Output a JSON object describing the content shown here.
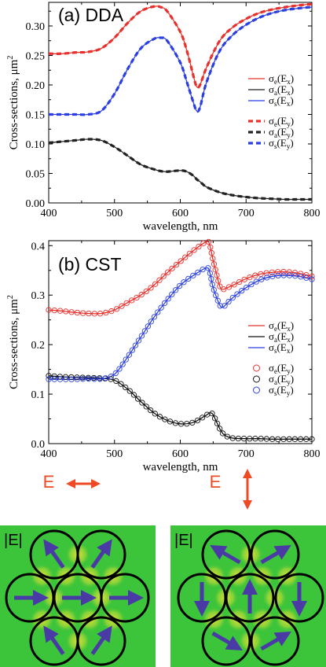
{
  "chart_data": [
    {
      "type": "line",
      "panel_label": "(a) DDA",
      "xlabel": "wavelength, nm",
      "ylabel": "Cross-sections, μm",
      "ylabel_sup": "2",
      "xlim": [
        400,
        800
      ],
      "ylim": [
        0,
        0.34
      ],
      "xticks": [
        400,
        500,
        600,
        700,
        800
      ],
      "yticks": [
        0.0,
        0.05,
        0.1,
        0.15,
        0.2,
        0.25,
        0.3
      ],
      "ytick_labels": [
        "0.00",
        "0.05",
        "0.10",
        "0.15",
        "0.20",
        "0.25",
        "0.30"
      ],
      "x": [
        400,
        420,
        440,
        460,
        480,
        500,
        520,
        540,
        560,
        570,
        580,
        600,
        610,
        620,
        625,
        630,
        640,
        660,
        680,
        700,
        720,
        740,
        760,
        780,
        800
      ],
      "series": [
        {
          "name": "σe(Ex)",
          "label": "σ",
          "sub": "e",
          "field": "(E",
          "field_sub": "x",
          "color": "#e8302c",
          "style": "solid",
          "values": [
            0.253,
            0.253,
            0.255,
            0.256,
            0.262,
            0.28,
            0.305,
            0.325,
            0.333,
            0.332,
            0.325,
            0.29,
            0.258,
            0.215,
            0.197,
            0.2,
            0.23,
            0.275,
            0.298,
            0.312,
            0.322,
            0.328,
            0.332,
            0.335,
            0.337
          ]
        },
        {
          "name": "σa(Ex)",
          "label": "σ",
          "sub": "a",
          "field": "(E",
          "field_sub": "x",
          "color": "#222222",
          "style": "solid",
          "values": [
            0.102,
            0.104,
            0.106,
            0.108,
            0.106,
            0.095,
            0.08,
            0.065,
            0.057,
            0.054,
            0.053,
            0.055,
            0.053,
            0.046,
            0.04,
            0.036,
            0.027,
            0.018,
            0.013,
            0.01,
            0.008,
            0.007,
            0.006,
            0.006,
            0.006
          ]
        },
        {
          "name": "σs(Ex)",
          "label": "σ",
          "sub": "s",
          "field": "(E",
          "field_sub": "x",
          "color": "#2b3fe0",
          "style": "solid",
          "values": [
            0.15,
            0.15,
            0.15,
            0.15,
            0.156,
            0.185,
            0.227,
            0.262,
            0.278,
            0.28,
            0.275,
            0.238,
            0.205,
            0.17,
            0.156,
            0.162,
            0.205,
            0.258,
            0.285,
            0.302,
            0.314,
            0.322,
            0.327,
            0.33,
            0.332
          ]
        },
        {
          "name": "σe(Ey)",
          "label": "σ",
          "sub": "e",
          "field": "(E",
          "field_sub": "y",
          "color": "#e8302c",
          "style": "dashed",
          "values": [
            0.253,
            0.253,
            0.255,
            0.256,
            0.262,
            0.28,
            0.305,
            0.325,
            0.333,
            0.332,
            0.325,
            0.29,
            0.258,
            0.215,
            0.197,
            0.2,
            0.23,
            0.275,
            0.298,
            0.312,
            0.322,
            0.328,
            0.332,
            0.335,
            0.337
          ]
        },
        {
          "name": "σa(Ey)",
          "label": "σ",
          "sub": "a",
          "field": "(E",
          "field_sub": "y",
          "color": "#222222",
          "style": "dashed",
          "values": [
            0.102,
            0.104,
            0.106,
            0.108,
            0.106,
            0.095,
            0.08,
            0.065,
            0.057,
            0.054,
            0.053,
            0.055,
            0.053,
            0.046,
            0.04,
            0.036,
            0.027,
            0.018,
            0.013,
            0.01,
            0.008,
            0.007,
            0.006,
            0.006,
            0.006
          ]
        },
        {
          "name": "σs(Ey)",
          "label": "σ",
          "sub": "s",
          "field": "(E",
          "field_sub": "y",
          "color": "#2b3fe0",
          "style": "dashed",
          "values": [
            0.15,
            0.15,
            0.15,
            0.15,
            0.156,
            0.185,
            0.227,
            0.262,
            0.278,
            0.28,
            0.275,
            0.238,
            0.205,
            0.17,
            0.156,
            0.162,
            0.205,
            0.258,
            0.285,
            0.302,
            0.314,
            0.322,
            0.327,
            0.33,
            0.332
          ]
        }
      ],
      "legend": "right"
    },
    {
      "type": "line",
      "panel_label": "(b) CST",
      "xlabel": "wavelength, nm",
      "ylabel": "Cross-sections, μm",
      "ylabel_sup": "2",
      "xlim": [
        400,
        800
      ],
      "ylim": [
        0,
        0.41
      ],
      "xticks": [
        400,
        500,
        600,
        700,
        800
      ],
      "yticks": [
        0.0,
        0.1,
        0.2,
        0.3,
        0.4
      ],
      "ytick_labels": [
        "0.0",
        "0.1",
        "0.2",
        "0.3",
        "0.4"
      ],
      "x": [
        400,
        420,
        440,
        460,
        480,
        500,
        520,
        540,
        560,
        580,
        600,
        620,
        640,
        645,
        650,
        660,
        665,
        670,
        680,
        700,
        720,
        740,
        760,
        780,
        800
      ],
      "series": [
        {
          "name": "σe(Ex)",
          "label": "σ",
          "sub": "e",
          "field": "(E",
          "field_sub": "x",
          "color": "#e8302c",
          "style": "line",
          "values": [
            0.27,
            0.268,
            0.265,
            0.263,
            0.263,
            0.27,
            0.285,
            0.3,
            0.32,
            0.345,
            0.368,
            0.39,
            0.408,
            0.4,
            0.37,
            0.318,
            0.312,
            0.314,
            0.32,
            0.333,
            0.342,
            0.346,
            0.347,
            0.344,
            0.338
          ]
        },
        {
          "name": "σa(Ex)",
          "label": "σ",
          "sub": "a",
          "field": "(E",
          "field_sub": "x",
          "color": "#111111",
          "style": "line",
          "values": [
            0.137,
            0.135,
            0.134,
            0.133,
            0.132,
            0.128,
            0.11,
            0.085,
            0.062,
            0.047,
            0.04,
            0.043,
            0.058,
            0.062,
            0.058,
            0.03,
            0.02,
            0.015,
            0.011,
            0.01,
            0.01,
            0.009,
            0.009,
            0.009,
            0.009
          ]
        },
        {
          "name": "σs(Ex)",
          "label": "σ",
          "sub": "s",
          "field": "(E",
          "field_sub": "x",
          "color": "#2b3fe0",
          "style": "line",
          "values": [
            0.13,
            0.13,
            0.13,
            0.131,
            0.131,
            0.14,
            0.175,
            0.215,
            0.255,
            0.29,
            0.32,
            0.34,
            0.355,
            0.345,
            0.315,
            0.28,
            0.276,
            0.282,
            0.295,
            0.315,
            0.33,
            0.338,
            0.34,
            0.338,
            0.332
          ]
        },
        {
          "name": "σe(Ey)",
          "label": "σ",
          "sub": "e",
          "field": "(E",
          "field_sub": "y",
          "color": "#e8302c",
          "style": "circles",
          "values": [
            0.27,
            0.268,
            0.265,
            0.263,
            0.263,
            0.27,
            0.285,
            0.3,
            0.32,
            0.345,
            0.368,
            0.39,
            0.408,
            0.4,
            0.37,
            0.318,
            0.312,
            0.314,
            0.32,
            0.333,
            0.342,
            0.346,
            0.347,
            0.344,
            0.338
          ]
        },
        {
          "name": "σa(Ey)",
          "label": "σ",
          "sub": "a",
          "field": "(E",
          "field_sub": "y",
          "color": "#111111",
          "style": "circles",
          "values": [
            0.137,
            0.135,
            0.134,
            0.133,
            0.132,
            0.128,
            0.11,
            0.085,
            0.062,
            0.047,
            0.04,
            0.043,
            0.058,
            0.062,
            0.058,
            0.03,
            0.02,
            0.015,
            0.011,
            0.01,
            0.01,
            0.009,
            0.009,
            0.009,
            0.009
          ]
        },
        {
          "name": "σs(Ey)",
          "label": "σ",
          "sub": "s",
          "field": "(E",
          "field_sub": "y",
          "color": "#2b3fe0",
          "style": "circles",
          "values": [
            0.13,
            0.13,
            0.13,
            0.131,
            0.131,
            0.14,
            0.175,
            0.215,
            0.255,
            0.29,
            0.32,
            0.34,
            0.355,
            0.345,
            0.315,
            0.28,
            0.276,
            0.282,
            0.295,
            0.315,
            0.33,
            0.338,
            0.34,
            0.338,
            0.332
          ]
        }
      ],
      "legend": "right"
    }
  ],
  "field_maps": [
    {
      "field_label": "E",
      "polarization": "horizontal",
      "map_label": "|E|",
      "arrow_angles_deg": [
        -125,
        -55,
        0,
        0,
        0,
        -125,
        -55
      ]
    },
    {
      "field_label": "E",
      "polarization": "vertical",
      "map_label": "|E|",
      "arrow_angles_deg": [
        -150,
        -30,
        90,
        -90,
        90,
        30,
        -30
      ]
    }
  ],
  "colors": {
    "red": "#e8302c",
    "blue": "#2b3fe0",
    "black": "#222222",
    "arrow": "#4a3aa6",
    "field_green": "#3cc43a",
    "field_yellow": "#e6e437",
    "polarization_arrow": "#ee4a24"
  }
}
